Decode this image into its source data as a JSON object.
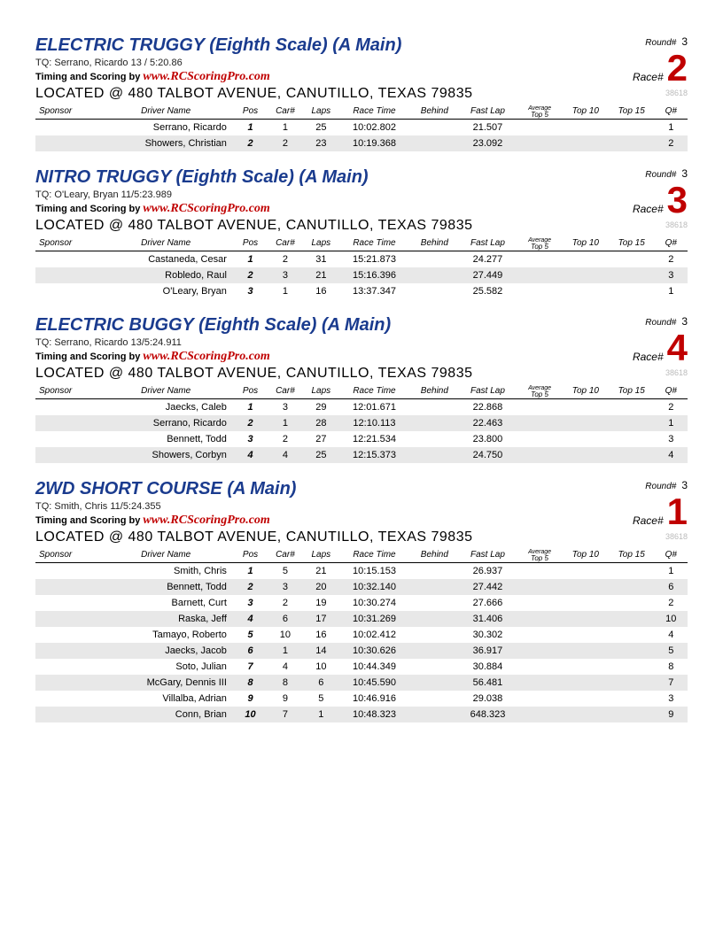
{
  "id_tag": "38618",
  "located": "LOCATED @ 480 TALBOT AVENUE, CANUTILLO, TEXAS 79835",
  "timing_prefix": "Timing and Scoring by ",
  "timing_url": "www.RCScoringPro.com",
  "round_label": "Round#",
  "race_label": "Race#",
  "columns": {
    "sponsor": "Sponsor",
    "driver": "Driver Name",
    "pos": "Pos",
    "car": "Car#",
    "laps": "Laps",
    "rt": "Race Time",
    "behind": "Behind",
    "fast": "Fast Lap",
    "avg": "Average",
    "top5": "Top 5",
    "top10": "Top 10",
    "top15": "Top 15",
    "q": "Q#"
  },
  "races": [
    {
      "title": "ELECTRIC TRUGGY (Eighth Scale) (A Main)",
      "tq": "TQ: Serrano, Ricardo 13 / 5:20.86",
      "round": "3",
      "race_num": "2",
      "rows": [
        {
          "driver": "Serrano, Ricardo",
          "pos": "1",
          "car": "1",
          "laps": "25",
          "rt": "10:02.802",
          "behind": "",
          "fast": "21.507",
          "q": "1",
          "shade": false
        },
        {
          "driver": "Showers, Christian",
          "pos": "2",
          "car": "2",
          "laps": "23",
          "rt": "10:19.368",
          "behind": "",
          "fast": "23.092",
          "q": "2",
          "shade": true
        }
      ]
    },
    {
      "title": "NITRO TRUGGY (Eighth Scale) (A Main)",
      "tq": "TQ: O'Leary, Bryan 11/5:23.989",
      "round": "3",
      "race_num": "3",
      "rows": [
        {
          "driver": "Castaneda, Cesar",
          "pos": "1",
          "car": "2",
          "laps": "31",
          "rt": "15:21.873",
          "behind": "",
          "fast": "24.277",
          "q": "2",
          "shade": false
        },
        {
          "driver": "Robledo, Raul",
          "pos": "2",
          "car": "3",
          "laps": "21",
          "rt": "15:16.396",
          "behind": "",
          "fast": "27.449",
          "q": "3",
          "shade": true
        },
        {
          "driver": "O'Leary, Bryan",
          "pos": "3",
          "car": "1",
          "laps": "16",
          "rt": "13:37.347",
          "behind": "",
          "fast": "25.582",
          "q": "1",
          "shade": false
        }
      ]
    },
    {
      "title": "ELECTRIC BUGGY (Eighth Scale) (A Main)",
      "tq": "TQ: Serrano, Ricardo 13/5:24.911",
      "round": "3",
      "race_num": "4",
      "rows": [
        {
          "driver": "Jaecks, Caleb",
          "pos": "1",
          "car": "3",
          "laps": "29",
          "rt": "12:01.671",
          "behind": "",
          "fast": "22.868",
          "q": "2",
          "shade": false
        },
        {
          "driver": "Serrano, Ricardo",
          "pos": "2",
          "car": "1",
          "laps": "28",
          "rt": "12:10.113",
          "behind": "",
          "fast": "22.463",
          "q": "1",
          "shade": true
        },
        {
          "driver": "Bennett, Todd",
          "pos": "3",
          "car": "2",
          "laps": "27",
          "rt": "12:21.534",
          "behind": "",
          "fast": "23.800",
          "q": "3",
          "shade": false
        },
        {
          "driver": "Showers, Corbyn",
          "pos": "4",
          "car": "4",
          "laps": "25",
          "rt": "12:15.373",
          "behind": "",
          "fast": "24.750",
          "q": "4",
          "shade": true
        }
      ]
    },
    {
      "title": "2WD SHORT COURSE (A Main)",
      "tq": "TQ: Smith, Chris 11/5:24.355",
      "round": "3",
      "race_num": "1",
      "rows": [
        {
          "driver": "Smith, Chris",
          "pos": "1",
          "car": "5",
          "laps": "21",
          "rt": "10:15.153",
          "behind": "",
          "fast": "26.937",
          "q": "1",
          "shade": false
        },
        {
          "driver": "Bennett, Todd",
          "pos": "2",
          "car": "3",
          "laps": "20",
          "rt": "10:32.140",
          "behind": "",
          "fast": "27.442",
          "q": "6",
          "shade": true
        },
        {
          "driver": "Barnett, Curt",
          "pos": "3",
          "car": "2",
          "laps": "19",
          "rt": "10:30.274",
          "behind": "",
          "fast": "27.666",
          "q": "2",
          "shade": false
        },
        {
          "driver": "Raska, Jeff",
          "pos": "4",
          "car": "6",
          "laps": "17",
          "rt": "10:31.269",
          "behind": "",
          "fast": "31.406",
          "q": "10",
          "shade": true
        },
        {
          "driver": "Tamayo, Roberto",
          "pos": "5",
          "car": "10",
          "laps": "16",
          "rt": "10:02.412",
          "behind": "",
          "fast": "30.302",
          "q": "4",
          "shade": false
        },
        {
          "driver": "Jaecks, Jacob",
          "pos": "6",
          "car": "1",
          "laps": "14",
          "rt": "10:30.626",
          "behind": "",
          "fast": "36.917",
          "q": "5",
          "shade": true
        },
        {
          "driver": "Soto, Julian",
          "pos": "7",
          "car": "4",
          "laps": "10",
          "rt": "10:44.349",
          "behind": "",
          "fast": "30.884",
          "q": "8",
          "shade": false
        },
        {
          "driver": "McGary, Dennis III",
          "pos": "8",
          "car": "8",
          "laps": "6",
          "rt": "10:45.590",
          "behind": "",
          "fast": "56.481",
          "q": "7",
          "shade": true
        },
        {
          "driver": "Villalba, Adrian",
          "pos": "9",
          "car": "9",
          "laps": "5",
          "rt": "10:46.916",
          "behind": "",
          "fast": "29.038",
          "q": "3",
          "shade": false
        },
        {
          "driver": "Conn, Brian",
          "pos": "10",
          "car": "7",
          "laps": "1",
          "rt": "10:48.323",
          "behind": "",
          "fast": "648.323",
          "q": "9",
          "shade": true
        }
      ]
    }
  ]
}
